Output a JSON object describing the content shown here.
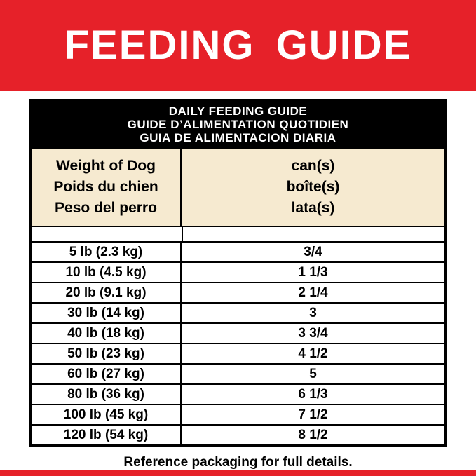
{
  "page": {
    "title": "FEEDING GUIDE",
    "footer_note": "Reference packaging for full details."
  },
  "colors": {
    "brand_red": "#e62129",
    "table_header_black": "#000000",
    "column_header_beige": "#f6ead0",
    "text_white": "#ffffff",
    "text_black": "#000000"
  },
  "chart_data": {
    "type": "table",
    "title_lines": [
      "DAILY FEEDING GUIDE",
      "GUIDE D’ALIMENTATION QUOTIDIEN",
      "GUIA DE ALIMENTACION DIARIA"
    ],
    "column_headers": {
      "weight_lines": [
        "Weight of Dog",
        "Poids du chien",
        "Peso del perro"
      ],
      "cans_lines": [
        "can(s)",
        "boîte(s)",
        "lata(s)"
      ]
    },
    "rows": [
      {
        "weight": "5 lb (2.3 kg)",
        "cans": "3/4"
      },
      {
        "weight": "10 lb (4.5 kg)",
        "cans": "1 1/3"
      },
      {
        "weight": "20 lb (9.1 kg)",
        "cans": "2 1/4"
      },
      {
        "weight": "30 lb (14 kg)",
        "cans": "3"
      },
      {
        "weight": "40 lb (18 kg)",
        "cans": "3 3/4"
      },
      {
        "weight": "50 lb (23 kg)",
        "cans": "4 1/2"
      },
      {
        "weight": "60 lb (27 kg)",
        "cans": "5"
      },
      {
        "weight": "80 lb (36 kg)",
        "cans": "6 1/3"
      },
      {
        "weight": "100 lb (45 kg)",
        "cans": "7 1/2"
      },
      {
        "weight": "120 lb (54 kg)",
        "cans": "8 1/2"
      }
    ]
  }
}
